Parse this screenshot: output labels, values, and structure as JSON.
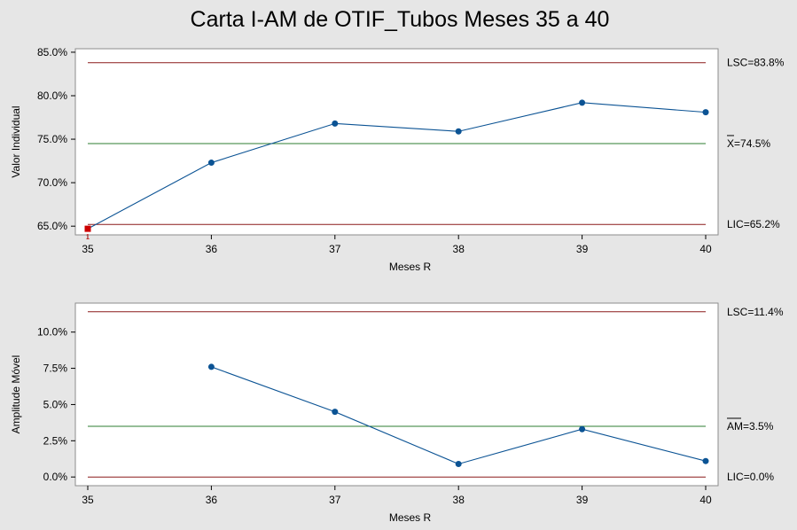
{
  "chart_data": {
    "type": "line",
    "title": "Carta I-AM de OTIF_Tubos Meses 35 a 40",
    "colors": {
      "series": "#0b5394",
      "limit": "#8b1a1a",
      "center": "#2e7d32",
      "out_of_control": "#cc0000"
    },
    "panels": [
      {
        "ylabel": "Valor Individual",
        "xlabel": "Meses R",
        "x": [
          35,
          36,
          37,
          38,
          39,
          40
        ],
        "y": [
          64.7,
          72.3,
          76.8,
          75.9,
          79.2,
          78.1
        ],
        "out_of_control_points": [
          35
        ],
        "ylim": [
          64.0,
          85.4
        ],
        "xlim": [
          35,
          40
        ],
        "yticks": [
          "65.0%",
          "70.0%",
          "75.0%",
          "80.0%",
          "85.0%"
        ],
        "ytick_values": [
          65,
          70,
          75,
          80,
          85
        ],
        "xticks": [
          "35",
          "36",
          "37",
          "38",
          "39",
          "40"
        ],
        "limits": [
          {
            "role": "ucl",
            "value": 83.8,
            "prefix": "LSC",
            "label": "=83.8%"
          },
          {
            "role": "center",
            "value": 74.5,
            "prefix": "X",
            "label": "=74.5%"
          },
          {
            "role": "lcl",
            "value": 65.2,
            "prefix": "LIC",
            "label": "=65.2%"
          }
        ]
      },
      {
        "ylabel": "Amplitude Móvel",
        "xlabel": "Meses R",
        "x": [
          36,
          37,
          38,
          39,
          40
        ],
        "y": [
          7.6,
          4.5,
          0.9,
          3.3,
          1.1
        ],
        "out_of_control_points": [],
        "ylim": [
          -0.6,
          12.0
        ],
        "xlim": [
          35,
          40
        ],
        "yticks": [
          "0.0%",
          "2.5%",
          "5.0%",
          "7.5%",
          "10.0%"
        ],
        "ytick_values": [
          0,
          2.5,
          5,
          7.5,
          10
        ],
        "xticks": [
          "35",
          "36",
          "37",
          "38",
          "39",
          "40"
        ],
        "limits": [
          {
            "role": "ucl",
            "value": 11.4,
            "prefix": "LSC",
            "label": "=11.4%"
          },
          {
            "role": "center",
            "value": 3.5,
            "prefix": "AM",
            "label": "=3.5%"
          },
          {
            "role": "lcl",
            "value": 0.0,
            "prefix": "LIC",
            "label": "=0.0%"
          }
        ]
      }
    ]
  }
}
